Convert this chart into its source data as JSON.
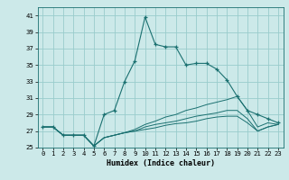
{
  "xlabel": "Humidex (Indice chaleur)",
  "background_color": "#cce9e9",
  "grid_color": "#99cccc",
  "line_color": "#1a7070",
  "xlim": [
    -0.5,
    23.5
  ],
  "ylim": [
    25,
    42
  ],
  "yticks": [
    25,
    27,
    29,
    31,
    33,
    35,
    37,
    39,
    41
  ],
  "xticks": [
    0,
    1,
    2,
    3,
    4,
    5,
    6,
    7,
    8,
    9,
    10,
    11,
    12,
    13,
    14,
    15,
    16,
    17,
    18,
    19,
    20,
    21,
    22,
    23
  ],
  "main_line": [
    27.5,
    27.5,
    26.5,
    26.5,
    26.5,
    25.2,
    29.0,
    29.5,
    33.0,
    35.5,
    40.8,
    37.5,
    37.2,
    37.2,
    35.0,
    35.2,
    35.2,
    34.5,
    33.2,
    31.2,
    29.5,
    29.0,
    28.5,
    28.0
  ],
  "line2": [
    27.5,
    27.5,
    26.5,
    26.5,
    26.5,
    25.2,
    26.2,
    26.5,
    26.8,
    27.2,
    27.8,
    28.2,
    28.7,
    29.0,
    29.5,
    29.8,
    30.2,
    30.5,
    30.8,
    31.2,
    29.5,
    27.5,
    28.0,
    27.8
  ],
  "line3": [
    27.5,
    27.5,
    26.5,
    26.5,
    26.5,
    25.2,
    26.2,
    26.5,
    26.8,
    27.0,
    27.5,
    27.8,
    28.0,
    28.2,
    28.5,
    28.8,
    29.0,
    29.2,
    29.5,
    29.5,
    28.5,
    27.0,
    27.5,
    27.8
  ],
  "line4": [
    27.5,
    27.5,
    26.5,
    26.5,
    26.5,
    25.2,
    26.2,
    26.5,
    26.8,
    27.0,
    27.2,
    27.4,
    27.7,
    27.9,
    28.0,
    28.2,
    28.5,
    28.7,
    28.8,
    28.8,
    28.0,
    27.0,
    27.5,
    27.8
  ],
  "xlabel_fontsize": 6.0,
  "tick_fontsize": 5.2
}
